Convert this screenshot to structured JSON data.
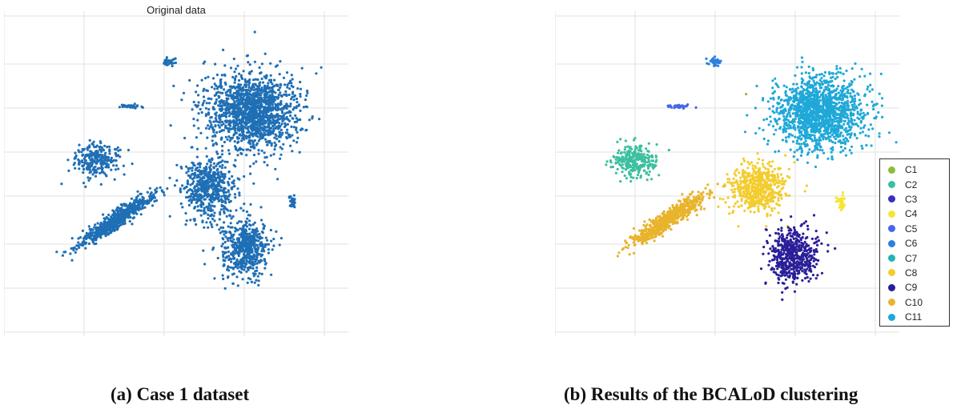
{
  "captions": {
    "a": "(a) Case 1 dataset",
    "b": "(b) Results of the BCALoD clustering"
  },
  "chart_data": [
    {
      "type": "scatter",
      "title": "Original data",
      "grid": true,
      "xlim": [
        0,
        430
      ],
      "ylim": [
        0,
        420
      ],
      "color": "#1f6fb5",
      "series": [
        {
          "center": [
            310,
            140
          ],
          "spread": [
            52,
            42
          ],
          "count": 1500
        },
        {
          "center": [
            300,
            310
          ],
          "spread": [
            28,
            34
          ],
          "count": 550
        },
        {
          "center": [
            255,
            235
          ],
          "spread": [
            30,
            34
          ],
          "count": 550
        },
        {
          "center": [
            205,
            77
          ],
          "spread": [
            7,
            4
          ],
          "count": 35
        },
        {
          "center": [
            160,
            133
          ],
          "spread": [
            15,
            2
          ],
          "count": 40
        },
        {
          "center": [
            115,
            200
          ],
          "spread": [
            26,
            20
          ],
          "count": 260
        },
        {
          "center": [
            360,
            252
          ],
          "spread": [
            4,
            9
          ],
          "count": 35
        },
        {
          "center": [
            140,
            275
          ],
          "spread": [
            48,
            9
          ],
          "count": 650,
          "rotation_deg": -35
        }
      ]
    },
    {
      "type": "scatter",
      "grid": true,
      "xlim": [
        0,
        430
      ],
      "ylim": [
        0,
        420
      ],
      "legend_position": "right",
      "series": [
        {
          "name": "C1",
          "color": "#8bbd3a",
          "center": [
            238,
            116
          ],
          "spread": [
            2,
            2
          ],
          "count": 1
        },
        {
          "name": "C2",
          "color": "#3bbfa0",
          "center": [
            100,
            200
          ],
          "spread": [
            25,
            20
          ],
          "count": 260
        },
        {
          "name": "C3",
          "color": "#3b2fbe",
          "center": [
            0,
            0
          ],
          "spread": [
            0,
            0
          ],
          "count": 0
        },
        {
          "name": "C4",
          "color": "#f5e634",
          "center": [
            358,
            252
          ],
          "spread": [
            4,
            9
          ],
          "count": 35
        },
        {
          "name": "C5",
          "color": "#4766e8",
          "center": [
            157,
            133
          ],
          "spread": [
            15,
            2
          ],
          "count": 40
        },
        {
          "name": "C6",
          "color": "#2b80e0",
          "center": [
            200,
            77
          ],
          "spread": [
            7,
            4
          ],
          "count": 35
        },
        {
          "name": "C7",
          "color": "#20b4b0",
          "center": [
            0,
            0
          ],
          "spread": [
            0,
            0
          ],
          "count": 0
        },
        {
          "name": "C8",
          "color": "#f3cc2e",
          "center": [
            255,
            235
          ],
          "spread": [
            32,
            28
          ],
          "count": 550
        },
        {
          "name": "C9",
          "color": "#2a1f98",
          "center": [
            297,
            318
          ],
          "spread": [
            28,
            30
          ],
          "count": 550
        },
        {
          "name": "C10",
          "color": "#e8b42d",
          "center": [
            140,
            275
          ],
          "spread": [
            48,
            9
          ],
          "count": 650,
          "rotation_deg": -35
        },
        {
          "name": "C11",
          "color": "#1fa8d8",
          "center": [
            330,
            140
          ],
          "spread": [
            48,
            40
          ],
          "count": 1500
        }
      ]
    }
  ]
}
